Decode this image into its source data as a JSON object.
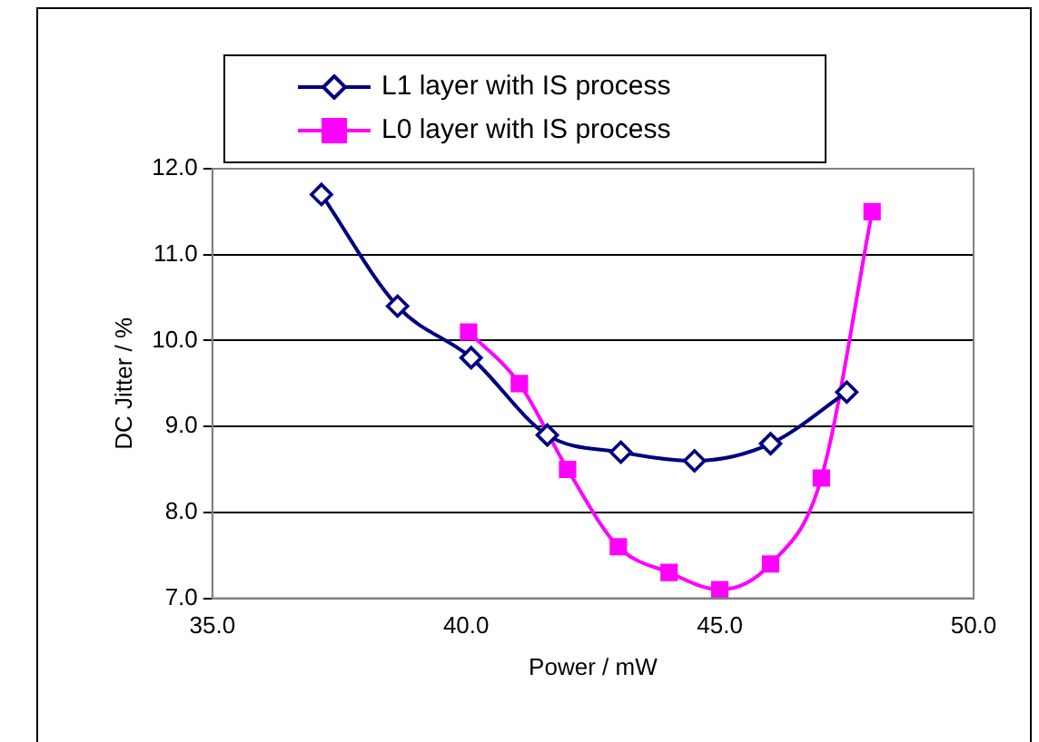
{
  "chart_data": {
    "type": "line",
    "xlabel": "Power / mW",
    "ylabel": "DC Jitter / %",
    "series": [
      {
        "name": "L1 layer with IS process",
        "color": "#000080",
        "marker": "diamond",
        "x": [
          37.15,
          38.65,
          40.1,
          41.6,
          43.05,
          44.5,
          46.0,
          47.5
        ],
        "values": [
          11.7,
          10.4,
          9.8,
          8.9,
          8.7,
          8.6,
          8.8,
          9.4
        ]
      },
      {
        "name": "L0 layer with IS process",
        "color": "#ff00ff",
        "marker": "square",
        "x": [
          40.05,
          41.05,
          42.0,
          43.0,
          44.0,
          45.0,
          46.0,
          47.0,
          48.0
        ],
        "values": [
          10.1,
          9.5,
          8.5,
          7.6,
          7.3,
          7.1,
          7.4,
          8.4,
          11.5
        ]
      }
    ],
    "xlim": [
      35,
      50
    ],
    "xticks": [
      {
        "value": 35,
        "label": "35.0"
      },
      {
        "value": 40,
        "label": "40.0"
      },
      {
        "value": 45,
        "label": "45.0"
      },
      {
        "value": 50,
        "label": "50.0"
      }
    ],
    "ylim": [
      7,
      12
    ],
    "yticks": [
      {
        "value": 7,
        "label": "7.0"
      },
      {
        "value": 8,
        "label": "8.0"
      },
      {
        "value": 9,
        "label": "9.0"
      },
      {
        "value": 10,
        "label": "10.0"
      },
      {
        "value": 11,
        "label": "11.0"
      },
      {
        "value": 12,
        "label": "12.0"
      }
    ],
    "grid": "y",
    "legend": "top"
  }
}
